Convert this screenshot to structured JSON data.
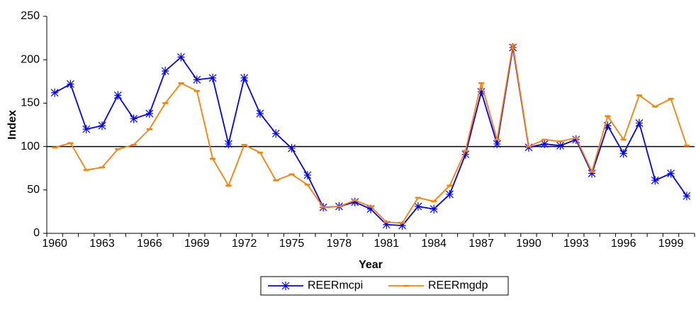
{
  "chart_data": {
    "type": "line",
    "x_label": "Year",
    "y_label": "Index",
    "categories": [
      "1960",
      null,
      null,
      "1963",
      null,
      null,
      "1966",
      null,
      null,
      "1969",
      null,
      null,
      "1972",
      null,
      null,
      "1975",
      null,
      null,
      "1978",
      null,
      null,
      "1981",
      null,
      null,
      "1984",
      null,
      null,
      "1987",
      null,
      null,
      "1990",
      null,
      null,
      "1993",
      null,
      null,
      "1996",
      null,
      null,
      "1999",
      null
    ],
    "series": [
      {
        "name": "REERmcpi",
        "color": "#0000ff",
        "marker": "star",
        "values": [
          162,
          172,
          120,
          124,
          159,
          132,
          138,
          187,
          203,
          177,
          179,
          103,
          179,
          138,
          115,
          98,
          67,
          30,
          31,
          36,
          28,
          10,
          9,
          31,
          28,
          45,
          91,
          163,
          103,
          214,
          99,
          103,
          101,
          108,
          69,
          124,
          92,
          127,
          61,
          69,
          43
        ]
      },
      {
        "name": "REERmgdp",
        "color": "#ff7f00",
        "marker": "dash",
        "values": [
          99,
          104,
          73,
          76,
          97,
          102,
          120,
          150,
          173,
          164,
          86,
          55,
          102,
          93,
          61,
          68,
          56,
          30,
          31,
          38,
          31,
          13,
          12,
          41,
          37,
          55,
          95,
          173,
          108,
          217,
          100,
          108,
          106,
          110,
          71,
          135,
          108,
          159,
          146,
          155,
          101
        ]
      }
    ],
    "reference_line": 100,
    "ylim": [
      0,
      250
    ],
    "yticks": [
      0,
      50,
      100,
      150,
      200,
      250
    ],
    "legend": "bottom"
  }
}
